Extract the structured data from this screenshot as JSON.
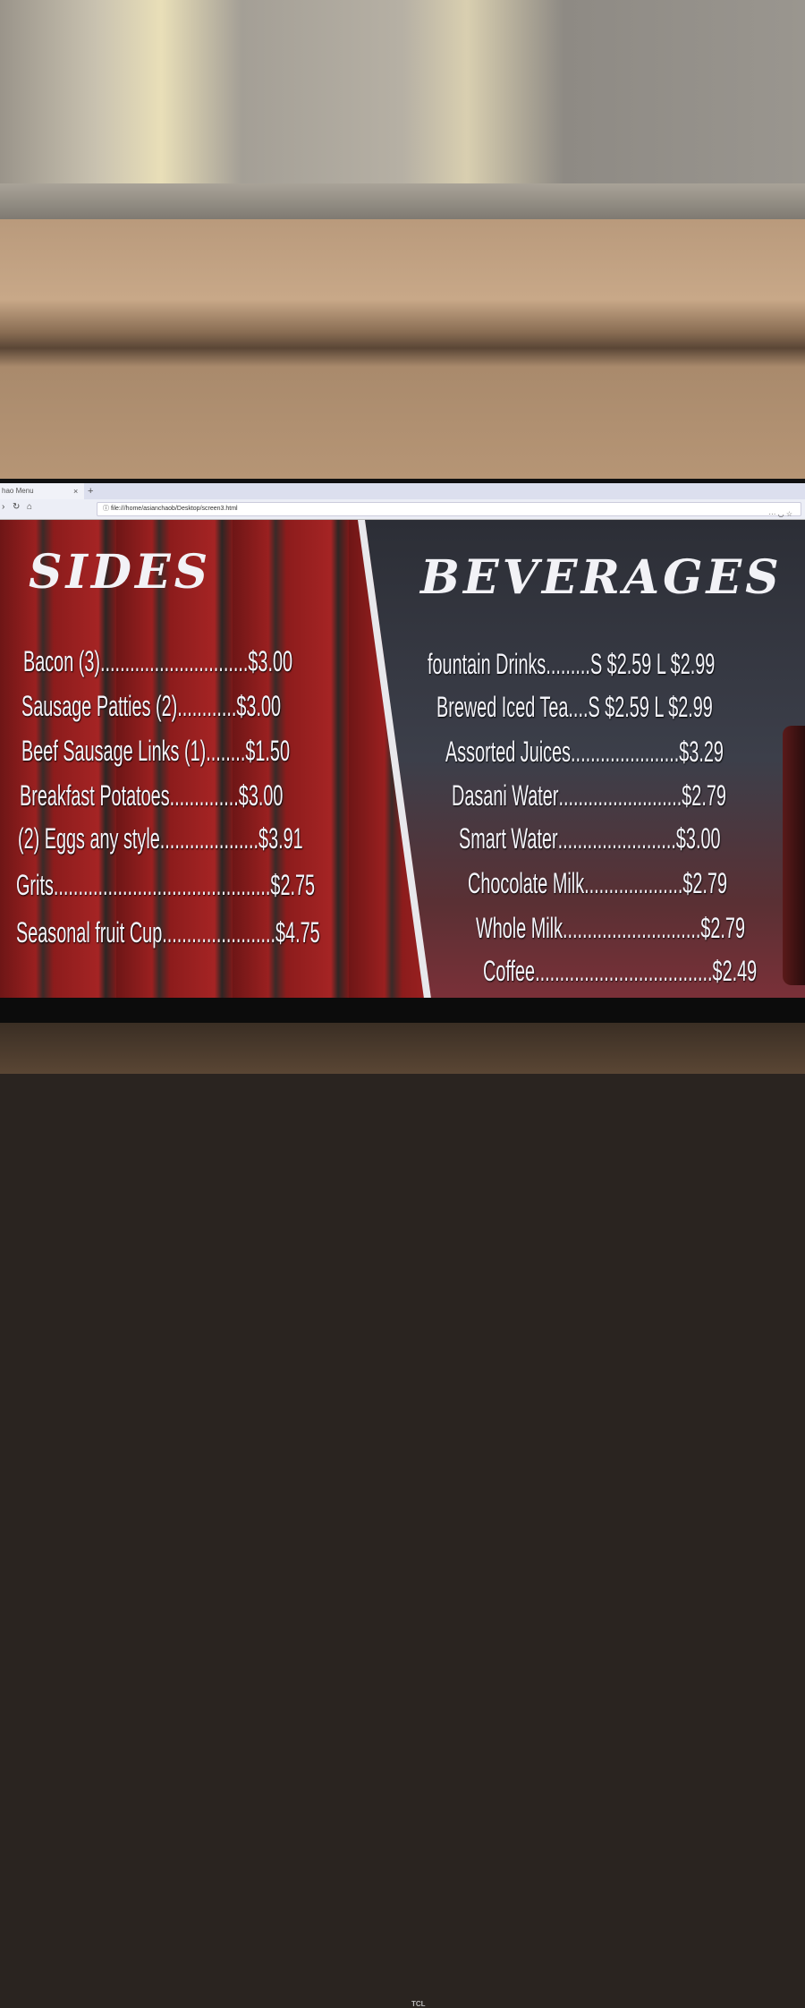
{
  "browser": {
    "tab_title": "hao Menu",
    "tab_close": "×",
    "new_tab": "+",
    "url": "file:///home/asianchaob/Desktop/screen3.html",
    "icons": [
      "back-icon",
      "reload-icon",
      "home-icon",
      "info-icon",
      "more-icon",
      "pocket-icon",
      "bookmark-star-icon"
    ]
  },
  "sides": {
    "title": "SIDES",
    "items": [
      {
        "name": "Bacon (3)",
        "dots": "..............................",
        "price": "$3.00"
      },
      {
        "name": "Sausage Patties (2) ",
        "dots": "............",
        "price": "$3.00"
      },
      {
        "name": "Beef Sausage Links (1) ",
        "dots": "........",
        "price": "$1.50"
      },
      {
        "name": "Breakfast Potatoes",
        "dots": "..............",
        "price": " $3.00"
      },
      {
        "name": "(2) Eggs any style",
        "dots": "....................",
        "price": "$3.91"
      },
      {
        "name": "Grits",
        "dots": "............................................",
        "price": "$2.75"
      },
      {
        "name": "Seasonal fruit Cup",
        "dots": ".......................",
        "price": " $4.75"
      }
    ]
  },
  "beverages": {
    "title": "BEVERAGES",
    "items": [
      {
        "name": "fountain Drinks",
        "dots": ".........",
        "price": "S $2.59 L $2.99"
      },
      {
        "name": "Brewed Iced Tea",
        "dots": "....",
        "price": "S $2.59 L $2.99"
      },
      {
        "name": "Assorted Juices",
        "dots": "......................",
        "price": "$3.29"
      },
      {
        "name": "Dasani Water",
        "dots": " .........................",
        "price": "$2.79"
      },
      {
        "name": "Smart Water ",
        "dots": "........................",
        "price": "$3.00"
      },
      {
        "name": "Chocolate Milk",
        "dots": "....................",
        "price": " $2.79"
      },
      {
        "name": "Whole Milk",
        "dots": "............................",
        "price": " $2.79"
      },
      {
        "name": "Coffee",
        "dots": "....................................",
        "price": "$2.49"
      }
    ]
  },
  "tv_brand": "TCL"
}
